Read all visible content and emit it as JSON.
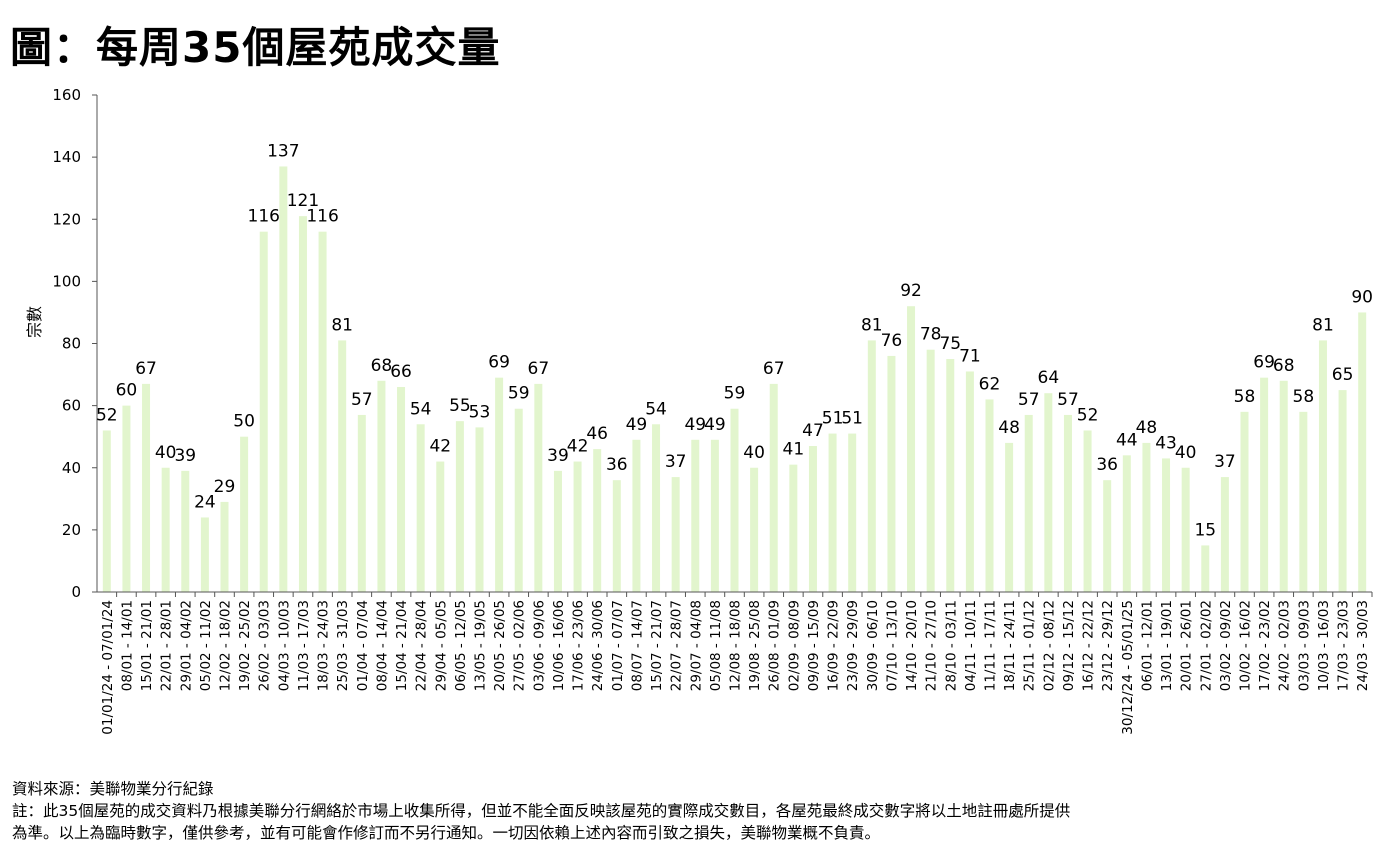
{
  "title": "圖：每周35個屋苑成交量",
  "footer": {
    "source": "資料來源：美聯物業分行紀錄",
    "note_line1": "註：此35個屋苑的成交資料乃根據美聯分行網絡於市場上收集所得，但並不能全面反映該屋苑的實際成交數目，各屋苑最終成交數字將以土地註冊處所提供",
    "note_line2": "為準。以上為臨時數字，僅供參考，並有可能會作修訂而不另行通知。一切因依賴上述內容而引致之損失，美聯物業概不負責。"
  },
  "chart_data": {
    "type": "bar",
    "ylabel": "宗數",
    "xlabel": "",
    "ylim": [
      0,
      160
    ],
    "yticks": [
      0,
      20,
      40,
      60,
      80,
      100,
      120,
      140,
      160
    ],
    "grid": false,
    "data_labels": true,
    "bar_color": "#e2f5cd",
    "categories": [
      "01/01/24 - 07/01/24",
      "08/01 - 14/01",
      "15/01 - 21/01",
      "22/01 - 28/01",
      "29/01 - 04/02",
      "05/02 - 11/02",
      "12/02 - 18/02",
      "19/02 - 25/02",
      "26/02 - 03/03",
      "04/03 - 10/03",
      "11/03 - 17/03",
      "18/03 - 24/03",
      "25/03 - 31/03",
      "01/04 - 07/04",
      "08/04 - 14/04",
      "15/04 - 21/04",
      "22/04 - 28/04",
      "29/04 - 05/05",
      "06/05 - 12/05",
      "13/05 - 19/05",
      "20/05 - 26/05",
      "27/05 - 02/06",
      "03/06 - 09/06",
      "10/06 - 16/06",
      "17/06 - 23/06",
      "24/06 - 30/06",
      "01/07 - 07/07",
      "08/07 - 14/07",
      "15/07 - 21/07",
      "22/07 - 28/07",
      "29/07 - 04/08",
      "05/08 - 11/08",
      "12/08 - 18/08",
      "19/08 - 25/08",
      "26/08 - 01/09",
      "02/09 - 08/09",
      "09/09 - 15/09",
      "16/09 - 22/09",
      "23/09 - 29/09",
      "30/09 - 06/10",
      "07/10 - 13/10",
      "14/10 - 20/10",
      "21/10 - 27/10",
      "28/10 - 03/11",
      "04/11 - 10/11",
      "11/11 - 17/11",
      "18/11 - 24/11",
      "25/11 - 01/12",
      "02/12 - 08/12",
      "09/12 - 15/12",
      "16/12 - 22/12",
      "23/12 - 29/12",
      "30/12/24 - 05/01/25",
      "06/01 - 12/01",
      "13/01 - 19/01",
      "20/01 - 26/01",
      "27/01 - 02/02",
      "03/02 - 09/02",
      "10/02 - 16/02",
      "17/02 - 23/02",
      "24/02 - 02/03",
      "03/03 - 09/03",
      "10/03 - 16/03",
      "17/03 - 23/03",
      "24/03 - 30/03"
    ],
    "values": [
      52,
      60,
      67,
      40,
      39,
      24,
      29,
      50,
      116,
      137,
      121,
      116,
      81,
      57,
      68,
      66,
      54,
      42,
      55,
      53,
      69,
      59,
      67,
      39,
      42,
      46,
      36,
      49,
      54,
      37,
      49,
      49,
      59,
      40,
      67,
      41,
      47,
      51,
      51,
      81,
      76,
      92,
      78,
      75,
      71,
      62,
      48,
      57,
      64,
      57,
      52,
      36,
      44,
      48,
      43,
      40,
      15,
      37,
      58,
      69,
      68,
      58,
      81,
      65,
      90
    ]
  }
}
